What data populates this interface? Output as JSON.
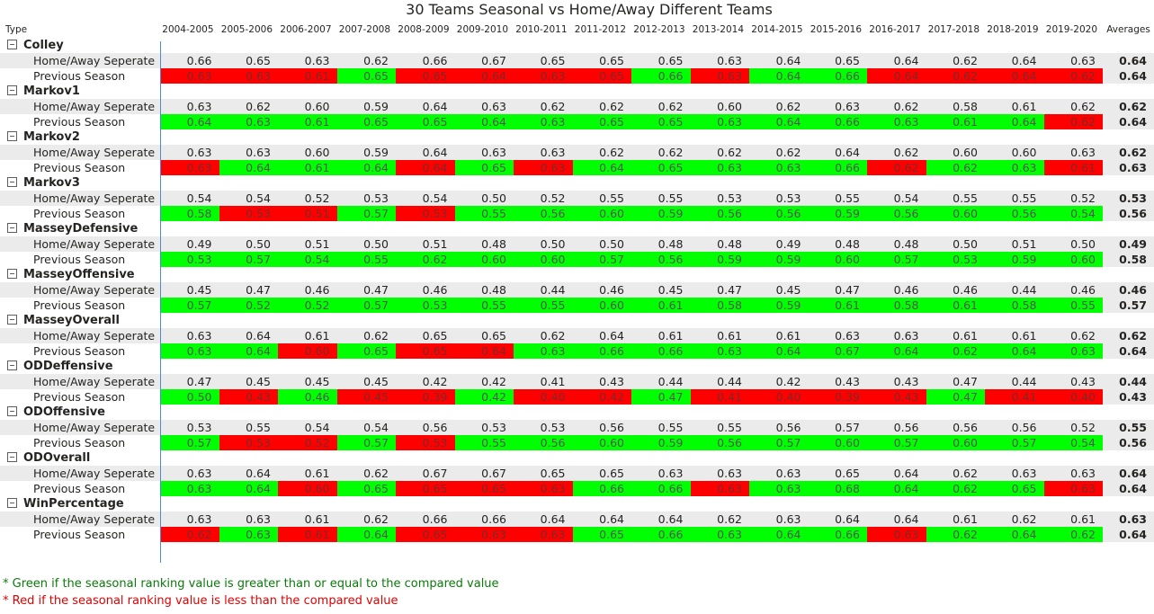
{
  "title": "30 Teams Seasonal vs Home/Away Different Teams",
  "header": {
    "type_label": "Type",
    "avg_label": "Averages"
  },
  "seasons": [
    "2004-2005",
    "2005-2006",
    "2006-2007",
    "2007-2008",
    "2008-2009",
    "2009-2010",
    "2010-2011",
    "2011-2012",
    "2012-2013",
    "2013-2014",
    "2014-2015",
    "2015-2016",
    "2016-2017",
    "2017-2018",
    "2018-2019",
    "2019-2020"
  ],
  "colors": {
    "green": "#00ff00",
    "red": "#ff0000",
    "shade": "#ebebeb",
    "divider": "#4a8bd6"
  },
  "chart_data": {
    "type": "table",
    "title": "30 Teams Seasonal vs Home/Away Different Teams",
    "columns": [
      "2004-2005",
      "2005-2006",
      "2006-2007",
      "2007-2008",
      "2008-2009",
      "2009-2010",
      "2010-2011",
      "2011-2012",
      "2012-2013",
      "2013-2014",
      "2014-2015",
      "2015-2016",
      "2016-2017",
      "2017-2018",
      "2018-2019",
      "2019-2020",
      "Averages"
    ],
    "row_labels": [
      "Home/Away Seperate",
      "Previous Season"
    ],
    "groups": [
      {
        "name": "Colley",
        "home": [
          "0.66",
          "0.65",
          "0.63",
          "0.62",
          "0.66",
          "0.67",
          "0.65",
          "0.65",
          "0.65",
          "0.63",
          "0.64",
          "0.65",
          "0.64",
          "0.62",
          "0.64",
          "0.63"
        ],
        "home_avg": "0.64",
        "previous": [
          "0.63",
          "0.63",
          "0.61",
          "0.65",
          "0.65",
          "0.64",
          "0.63",
          "0.65",
          "0.66",
          "0.63",
          "0.64",
          "0.66",
          "0.64",
          "0.62",
          "0.64",
          "0.62"
        ],
        "previous_avg": "0.64",
        "previous_colors": [
          "R",
          "R",
          "R",
          "G",
          "R",
          "R",
          "R",
          "R",
          "G",
          "R",
          "G",
          "G",
          "R",
          "R",
          "R",
          "R"
        ]
      },
      {
        "name": "Markov1",
        "home": [
          "0.63",
          "0.62",
          "0.60",
          "0.59",
          "0.64",
          "0.63",
          "0.62",
          "0.62",
          "0.62",
          "0.60",
          "0.62",
          "0.63",
          "0.62",
          "0.58",
          "0.61",
          "0.62"
        ],
        "home_avg": "0.62",
        "previous": [
          "0.64",
          "0.63",
          "0.61",
          "0.65",
          "0.65",
          "0.64",
          "0.63",
          "0.65",
          "0.65",
          "0.63",
          "0.64",
          "0.66",
          "0.63",
          "0.61",
          "0.64",
          "0.62"
        ],
        "previous_avg": "0.64",
        "previous_colors": [
          "G",
          "G",
          "G",
          "G",
          "G",
          "G",
          "G",
          "G",
          "G",
          "G",
          "G",
          "G",
          "G",
          "G",
          "G",
          "R"
        ]
      },
      {
        "name": "Markov2",
        "home": [
          "0.63",
          "0.63",
          "0.60",
          "0.59",
          "0.64",
          "0.63",
          "0.63",
          "0.62",
          "0.62",
          "0.62",
          "0.62",
          "0.64",
          "0.62",
          "0.60",
          "0.60",
          "0.63"
        ],
        "home_avg": "0.62",
        "previous": [
          "0.63",
          "0.64",
          "0.61",
          "0.64",
          "0.64",
          "0.65",
          "0.63",
          "0.64",
          "0.65",
          "0.63",
          "0.63",
          "0.66",
          "0.62",
          "0.62",
          "0.63",
          "0.61"
        ],
        "previous_avg": "0.63",
        "previous_colors": [
          "R",
          "G",
          "G",
          "G",
          "R",
          "G",
          "R",
          "G",
          "G",
          "G",
          "G",
          "G",
          "R",
          "G",
          "G",
          "R"
        ]
      },
      {
        "name": "Markov3",
        "home": [
          "0.54",
          "0.54",
          "0.52",
          "0.53",
          "0.54",
          "0.50",
          "0.52",
          "0.55",
          "0.55",
          "0.53",
          "0.53",
          "0.55",
          "0.54",
          "0.55",
          "0.55",
          "0.52"
        ],
        "home_avg": "0.53",
        "previous": [
          "0.58",
          "0.53",
          "0.51",
          "0.57",
          "0.53",
          "0.55",
          "0.56",
          "0.60",
          "0.59",
          "0.56",
          "0.56",
          "0.59",
          "0.56",
          "0.60",
          "0.56",
          "0.54"
        ],
        "previous_avg": "0.56",
        "previous_colors": [
          "G",
          "R",
          "R",
          "G",
          "R",
          "G",
          "G",
          "G",
          "G",
          "G",
          "G",
          "G",
          "G",
          "G",
          "G",
          "G"
        ]
      },
      {
        "name": "MasseyDefensive",
        "home": [
          "0.49",
          "0.50",
          "0.51",
          "0.50",
          "0.51",
          "0.48",
          "0.50",
          "0.50",
          "0.48",
          "0.48",
          "0.49",
          "0.48",
          "0.48",
          "0.50",
          "0.51",
          "0.50"
        ],
        "home_avg": "0.49",
        "previous": [
          "0.53",
          "0.57",
          "0.54",
          "0.55",
          "0.62",
          "0.60",
          "0.60",
          "0.57",
          "0.56",
          "0.59",
          "0.59",
          "0.60",
          "0.57",
          "0.53",
          "0.59",
          "0.60"
        ],
        "previous_avg": "0.58",
        "previous_colors": [
          "G",
          "G",
          "G",
          "G",
          "G",
          "G",
          "G",
          "G",
          "G",
          "G",
          "G",
          "G",
          "G",
          "G",
          "G",
          "G"
        ]
      },
      {
        "name": "MasseyOffensive",
        "home": [
          "0.45",
          "0.47",
          "0.46",
          "0.47",
          "0.46",
          "0.48",
          "0.44",
          "0.46",
          "0.45",
          "0.47",
          "0.45",
          "0.47",
          "0.46",
          "0.46",
          "0.44",
          "0.46"
        ],
        "home_avg": "0.46",
        "previous": [
          "0.57",
          "0.52",
          "0.52",
          "0.57",
          "0.53",
          "0.55",
          "0.55",
          "0.60",
          "0.61",
          "0.58",
          "0.59",
          "0.61",
          "0.58",
          "0.61",
          "0.58",
          "0.55"
        ],
        "previous_avg": "0.57",
        "previous_colors": [
          "G",
          "G",
          "G",
          "G",
          "G",
          "G",
          "G",
          "G",
          "G",
          "G",
          "G",
          "G",
          "G",
          "G",
          "G",
          "G"
        ]
      },
      {
        "name": "MasseyOverall",
        "home": [
          "0.63",
          "0.64",
          "0.61",
          "0.62",
          "0.65",
          "0.65",
          "0.62",
          "0.64",
          "0.61",
          "0.61",
          "0.61",
          "0.63",
          "0.63",
          "0.61",
          "0.61",
          "0.62"
        ],
        "home_avg": "0.62",
        "previous": [
          "0.63",
          "0.64",
          "0.60",
          "0.65",
          "0.65",
          "0.64",
          "0.63",
          "0.66",
          "0.66",
          "0.63",
          "0.64",
          "0.67",
          "0.64",
          "0.62",
          "0.64",
          "0.63"
        ],
        "previous_avg": "0.64",
        "previous_colors": [
          "G",
          "G",
          "R",
          "G",
          "R",
          "R",
          "G",
          "G",
          "G",
          "G",
          "G",
          "G",
          "G",
          "G",
          "G",
          "G"
        ]
      },
      {
        "name": "ODDeffensive",
        "home": [
          "0.47",
          "0.45",
          "0.45",
          "0.45",
          "0.42",
          "0.42",
          "0.41",
          "0.43",
          "0.44",
          "0.44",
          "0.42",
          "0.43",
          "0.43",
          "0.47",
          "0.44",
          "0.43"
        ],
        "home_avg": "0.44",
        "previous": [
          "0.50",
          "0.43",
          "0.46",
          "0.45",
          "0.39",
          "0.42",
          "0.40",
          "0.42",
          "0.47",
          "0.41",
          "0.40",
          "0.39",
          "0.43",
          "0.47",
          "0.41",
          "0.40"
        ],
        "previous_avg": "0.43",
        "previous_colors": [
          "G",
          "R",
          "G",
          "R",
          "R",
          "G",
          "R",
          "R",
          "G",
          "R",
          "R",
          "R",
          "R",
          "G",
          "R",
          "R"
        ]
      },
      {
        "name": "ODOffensive",
        "home": [
          "0.53",
          "0.55",
          "0.54",
          "0.54",
          "0.56",
          "0.53",
          "0.53",
          "0.56",
          "0.55",
          "0.55",
          "0.56",
          "0.57",
          "0.56",
          "0.56",
          "0.56",
          "0.52"
        ],
        "home_avg": "0.55",
        "previous": [
          "0.57",
          "0.53",
          "0.52",
          "0.57",
          "0.53",
          "0.55",
          "0.56",
          "0.60",
          "0.59",
          "0.56",
          "0.57",
          "0.60",
          "0.57",
          "0.60",
          "0.57",
          "0.54"
        ],
        "previous_avg": "0.56",
        "previous_colors": [
          "G",
          "R",
          "R",
          "G",
          "R",
          "G",
          "G",
          "G",
          "G",
          "G",
          "G",
          "G",
          "G",
          "G",
          "G",
          "G"
        ]
      },
      {
        "name": "ODOverall",
        "home": [
          "0.63",
          "0.64",
          "0.61",
          "0.62",
          "0.67",
          "0.67",
          "0.65",
          "0.65",
          "0.63",
          "0.63",
          "0.63",
          "0.65",
          "0.64",
          "0.62",
          "0.63",
          "0.63"
        ],
        "home_avg": "0.64",
        "previous": [
          "0.63",
          "0.64",
          "0.60",
          "0.65",
          "0.65",
          "0.65",
          "0.63",
          "0.66",
          "0.66",
          "0.63",
          "0.63",
          "0.68",
          "0.64",
          "0.62",
          "0.65",
          "0.63"
        ],
        "previous_avg": "0.64",
        "previous_colors": [
          "G",
          "G",
          "R",
          "G",
          "R",
          "R",
          "R",
          "G",
          "G",
          "R",
          "G",
          "G",
          "G",
          "G",
          "G",
          "R"
        ]
      },
      {
        "name": "WinPercentage",
        "home": [
          "0.63",
          "0.63",
          "0.61",
          "0.62",
          "0.66",
          "0.66",
          "0.64",
          "0.64",
          "0.64",
          "0.62",
          "0.63",
          "0.64",
          "0.64",
          "0.61",
          "0.62",
          "0.61"
        ],
        "home_avg": "0.63",
        "previous": [
          "0.62",
          "0.63",
          "0.61",
          "0.64",
          "0.65",
          "0.63",
          "0.63",
          "0.65",
          "0.66",
          "0.63",
          "0.64",
          "0.66",
          "0.63",
          "0.62",
          "0.64",
          "0.62"
        ],
        "previous_avg": "0.64",
        "previous_colors": [
          "R",
          "G",
          "R",
          "G",
          "R",
          "R",
          "R",
          "G",
          "G",
          "G",
          "G",
          "G",
          "R",
          "G",
          "G",
          "G"
        ]
      }
    ]
  },
  "notes": {
    "green": "* Green if the seasonal ranking value is greater than or equal to the compared value",
    "red": "* Red if the seasonal ranking value is less than the compared value"
  }
}
